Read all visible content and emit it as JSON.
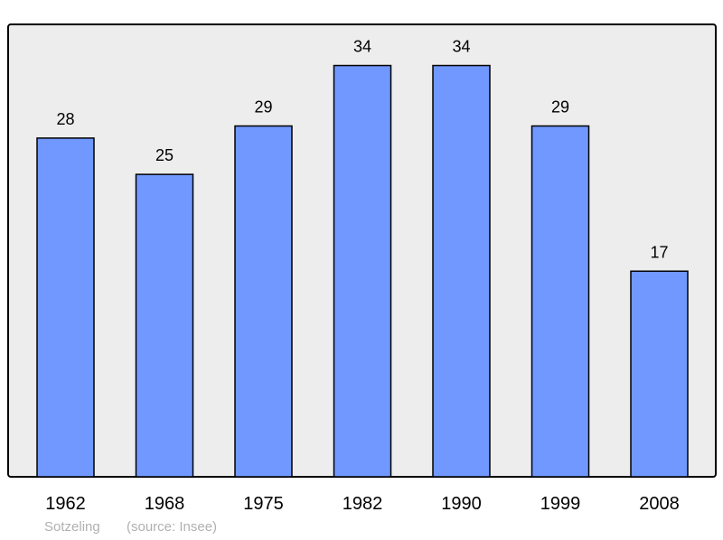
{
  "chart_data": {
    "type": "bar",
    "categories": [
      "1962",
      "1968",
      "1975",
      "1982",
      "1990",
      "1999",
      "2008"
    ],
    "values": [
      28,
      25,
      29,
      34,
      34,
      29,
      17
    ],
    "data_labels": [
      "28",
      "25",
      "29",
      "34",
      "34",
      "29",
      "17"
    ],
    "ylim": [
      0,
      37.4
    ],
    "grid": false,
    "colors": {
      "bar": "#7098ff",
      "background": "#ededed",
      "border": "#000000"
    }
  },
  "footer": {
    "place": "Sotzeling",
    "source": "(source: Insee)"
  }
}
